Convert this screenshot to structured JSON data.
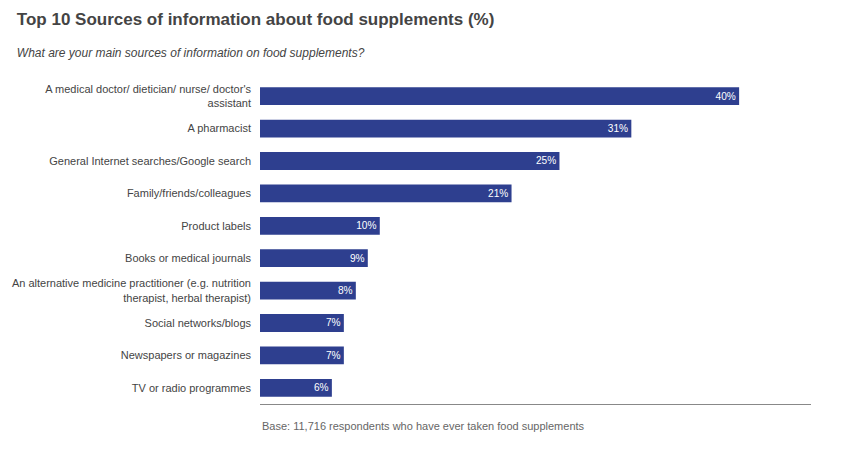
{
  "chart_data": {
    "type": "bar",
    "orientation": "horizontal",
    "title": "Top 10 Sources of information about food supplements (%)",
    "subtitle": "What are your main sources of information on food supplements?",
    "annotations": [
      "Base: 11,716 respondents who have ever taken food supplements"
    ],
    "categories": [
      "A medical doctor/ dietician/ nurse/ doctor's\nassistant",
      "A pharmacist",
      "General Internet searches/Google search",
      "Family/friends/colleagues",
      "Product labels",
      "Books or medical journals",
      "An alternative medicine practitioner (e.g. nutrition\ntherapist, herbal therapist)",
      "Social networks/blogs",
      "Newspapers or magazines",
      "TV or radio programmes"
    ],
    "values": [
      40,
      31,
      25,
      21,
      10,
      9,
      8,
      7,
      7,
      6
    ],
    "value_labels": [
      "40%",
      "31%",
      "25%",
      "21%",
      "10%",
      "9%",
      "8%",
      "7%",
      "7%",
      "6%"
    ],
    "data_labels": true,
    "color": "#2e3f8f",
    "xlim": [
      0,
      46
    ],
    "tick_labels": "y",
    "grid": false
  }
}
